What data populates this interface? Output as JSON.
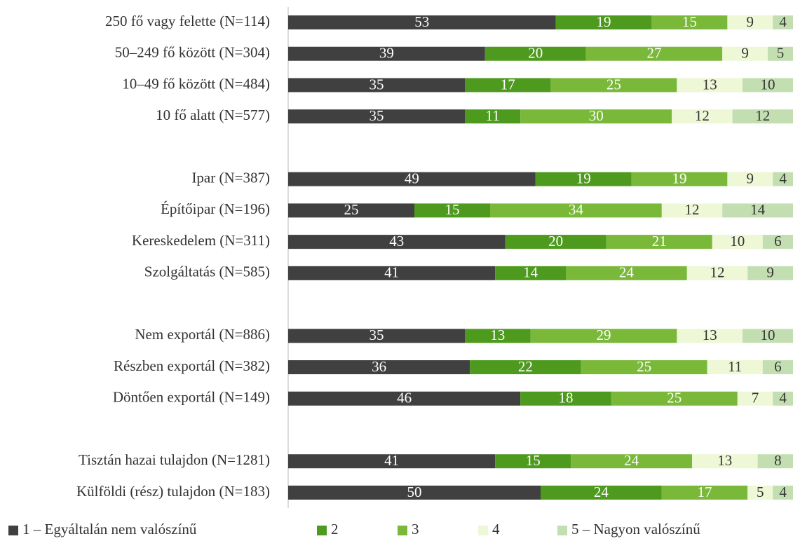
{
  "chart_data": {
    "type": "stacked-bar-horizontal",
    "categories": [
      "250 fő vagy felette (N=114)",
      "50–249 fő között (N=304)",
      "10–49 fő között (N=484)",
      "10 fő alatt (N=577)",
      null,
      "Ipar (N=387)",
      "Építőipar (N=196)",
      "Kereskedelem (N=311)",
      "Szolgáltatás (N=585)",
      null,
      "Nem exportál (N=886)",
      "Részben exportál (N=382)",
      "Döntően exportál (N=149)",
      null,
      "Tisztán hazai tulajdon (N=1281)",
      "Külföldi (rész) tulajdon (N=183)"
    ],
    "series": [
      {
        "name": "1 – Egyáltalán nem valószínű",
        "color": "#404040",
        "values": [
          53,
          39,
          35,
          35,
          null,
          49,
          25,
          43,
          41,
          null,
          35,
          36,
          46,
          null,
          41,
          50
        ]
      },
      {
        "name": "2",
        "color": "#4e9a1e",
        "values": [
          19,
          20,
          17,
          11,
          null,
          19,
          15,
          20,
          14,
          null,
          13,
          22,
          18,
          null,
          15,
          24
        ]
      },
      {
        "name": "3",
        "color": "#7ab83a",
        "values": [
          15,
          27,
          25,
          30,
          null,
          19,
          34,
          21,
          24,
          null,
          29,
          25,
          25,
          null,
          24,
          17
        ]
      },
      {
        "name": "4",
        "color": "#eef7d6",
        "values": [
          9,
          9,
          13,
          12,
          null,
          9,
          12,
          10,
          12,
          null,
          13,
          11,
          7,
          null,
          13,
          5
        ]
      },
      {
        "name": "5 – Nagyon valószínű",
        "color": "#c3dfb2",
        "values": [
          4,
          5,
          10,
          12,
          null,
          4,
          14,
          6,
          9,
          null,
          10,
          6,
          4,
          null,
          8,
          4
        ]
      }
    ],
    "xlim": [
      0,
      100
    ],
    "legend": "bottom"
  }
}
